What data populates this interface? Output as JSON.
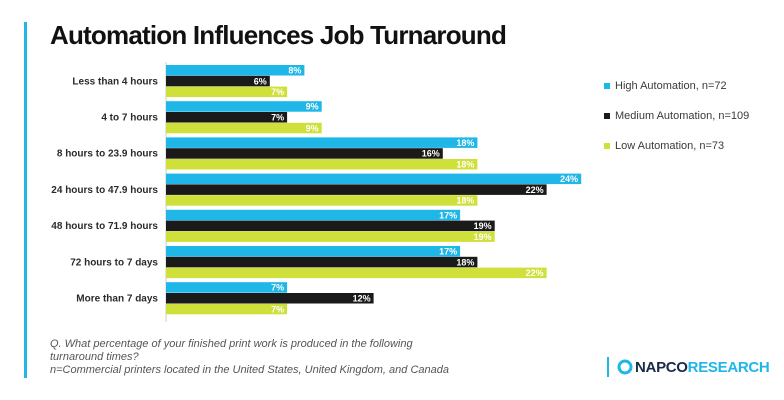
{
  "title": "Automation Influences Job Turnaround",
  "colors": {
    "accent": "#1fb6e8",
    "high": "#1fb6e8",
    "medium": "#1a1a1a",
    "low": "#cfe03a",
    "logo_blue": "#1fb6e8",
    "logo_navy": "#1a2a4a"
  },
  "chart_data": {
    "type": "bar",
    "orientation": "horizontal",
    "categories": [
      "Less than 4 hours",
      "4 to 7 hours",
      "8 hours to 23.9 hours",
      "24 hours to 47.9 hours",
      "48 hours to 71.9 hours",
      "72 hours to 7 days",
      "More than 7 days"
    ],
    "series": [
      {
        "name": "High Automation, n=72",
        "color": "#1fb6e8",
        "values": [
          8,
          9,
          18,
          24,
          17,
          17,
          7
        ]
      },
      {
        "name": "Medium Automation, n=109",
        "color": "#1a1a1a",
        "values": [
          6,
          7,
          16,
          22,
          19,
          18,
          12
        ]
      },
      {
        "name": "Low Automation, n=73",
        "color": "#cfe03a",
        "values": [
          7,
          9,
          18,
          18,
          19,
          22,
          7
        ]
      }
    ],
    "value_suffix": "%",
    "xlim": [
      0,
      24
    ],
    "legend_position": "right",
    "grid": false
  },
  "footnote": {
    "line1": "Q. What percentage of your finished print work is produced in the following",
    "line2": "turnaround times?",
    "line3": "n=Commercial printers located in the United States, United Kingdom, and Canada"
  },
  "logo": {
    "part1": "NAPCO",
    "part2": "RESEARCH"
  }
}
